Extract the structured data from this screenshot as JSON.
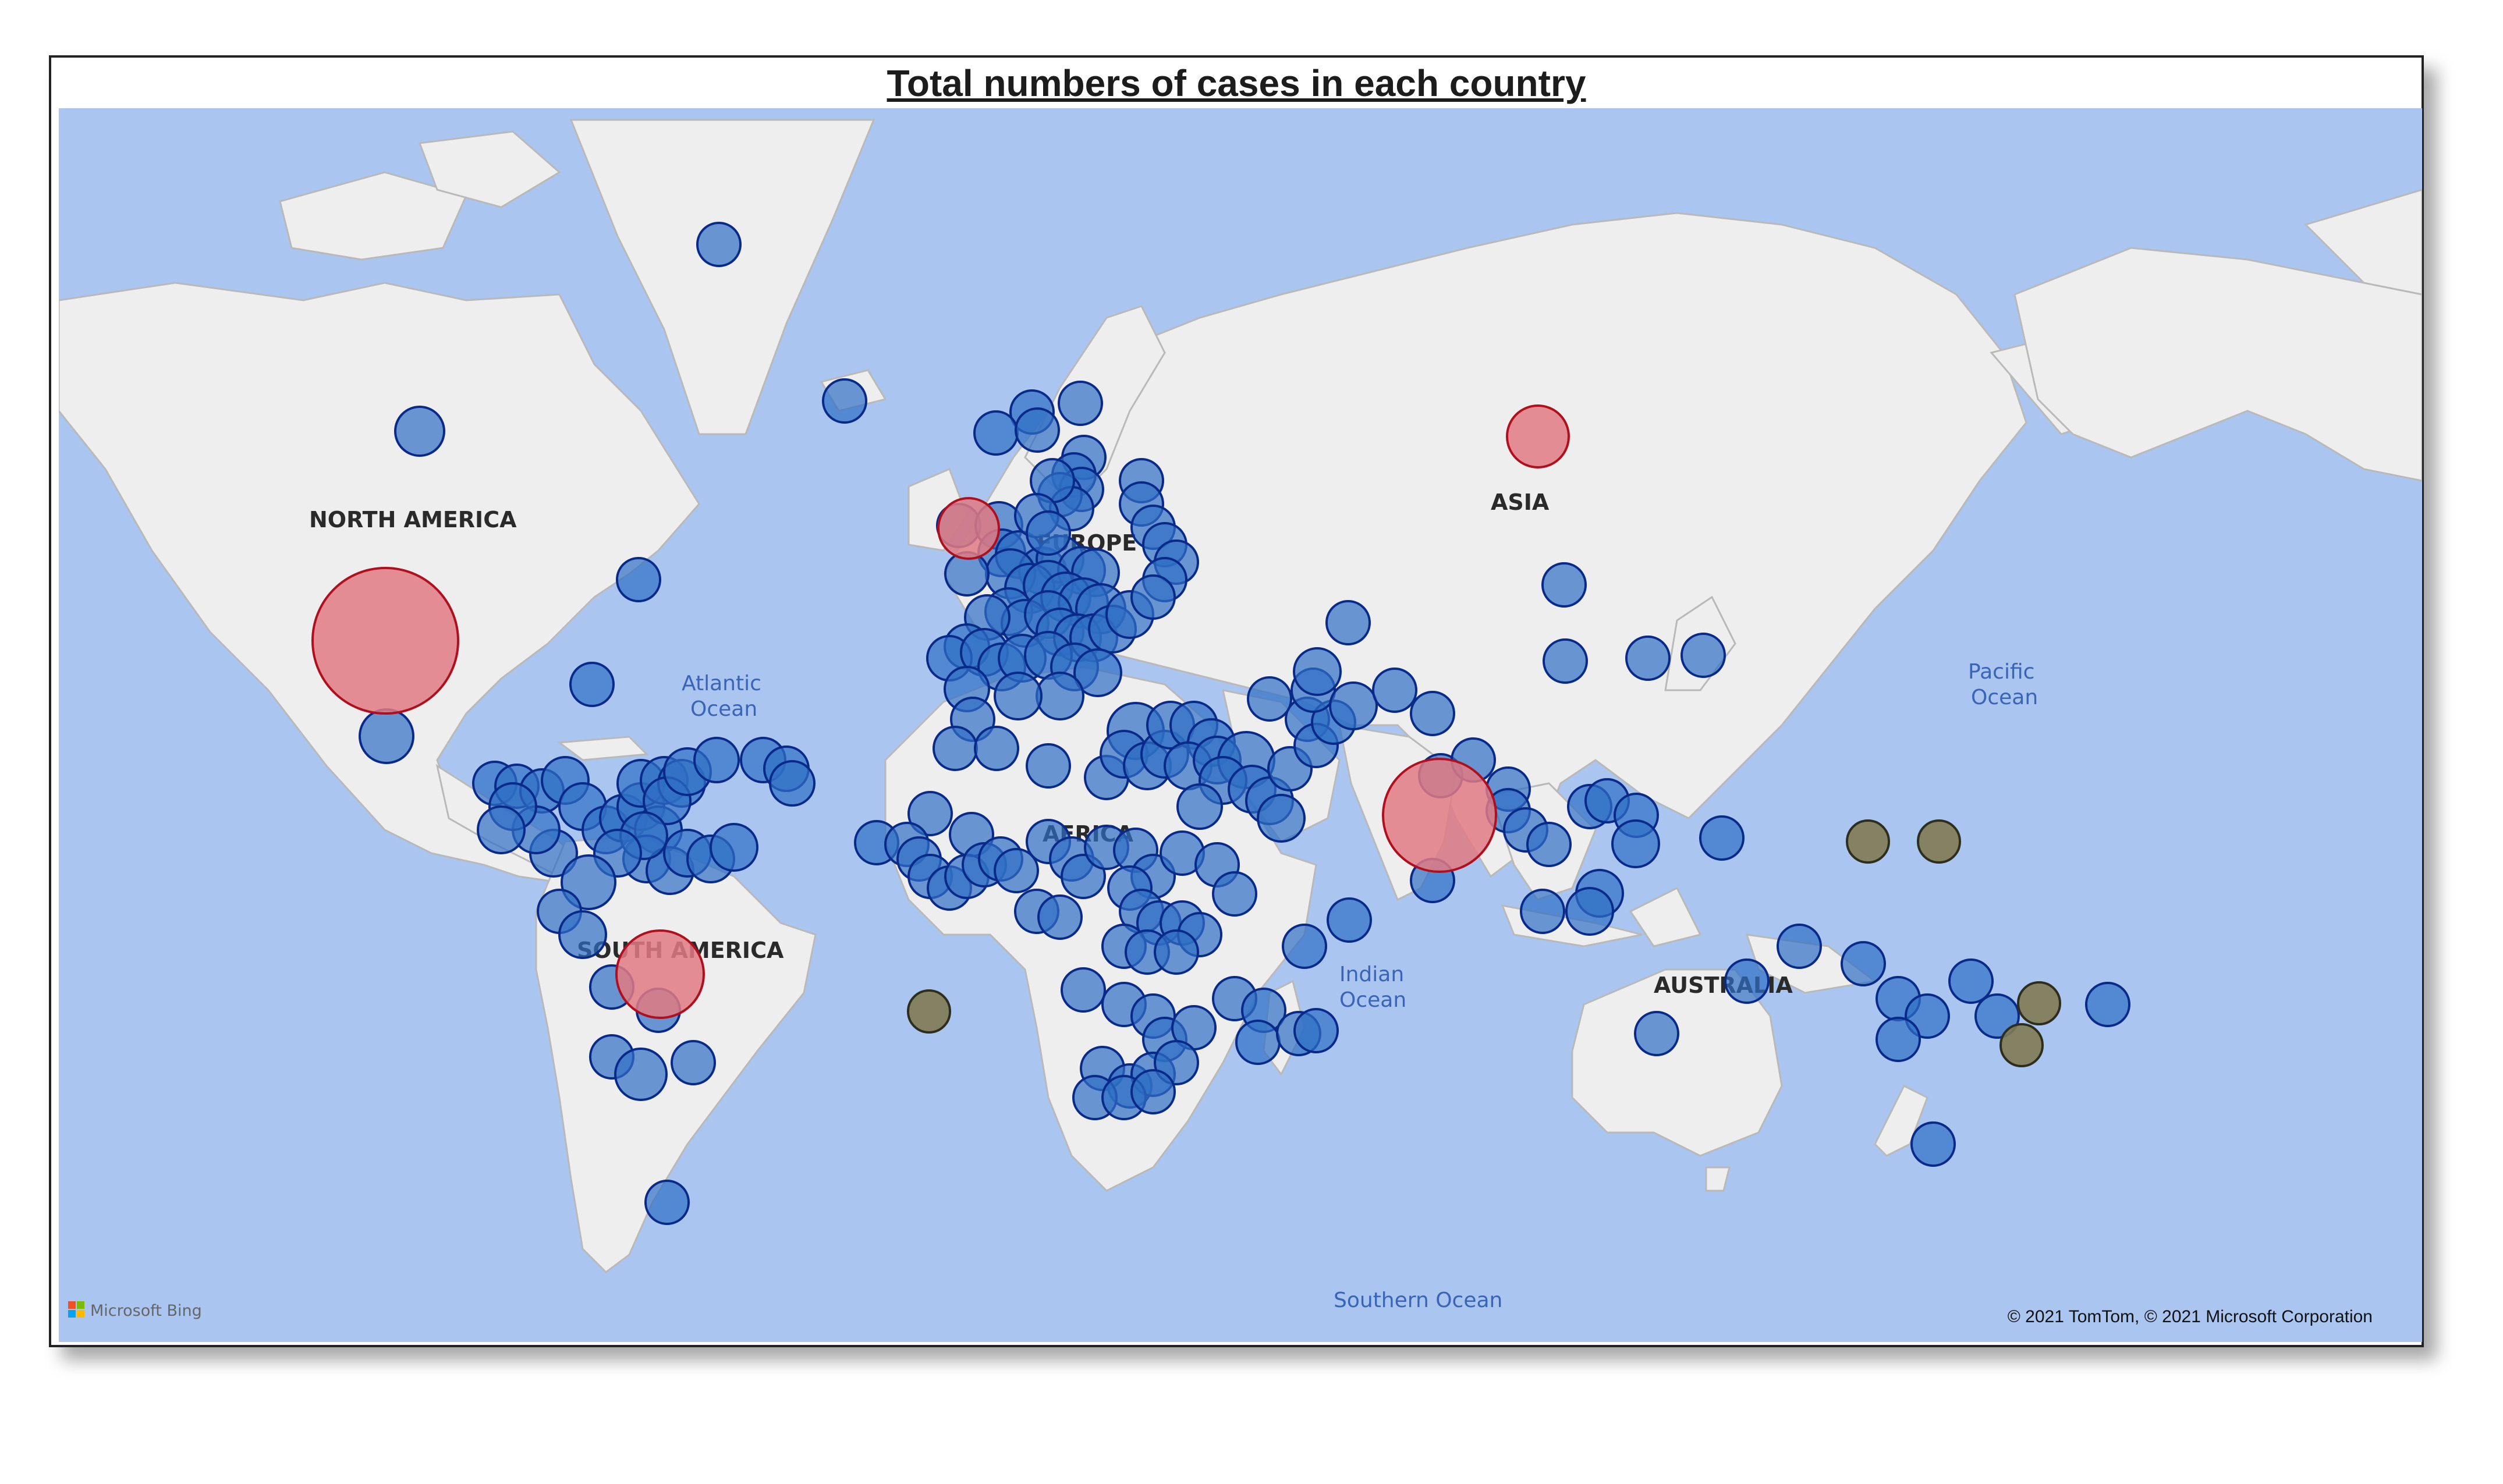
{
  "title": "Total numbers of cases in each country",
  "labels": {
    "continents": [
      "NORTH AMERICA",
      "SOUTH AMERICA",
      "EUROPE",
      "AFRICA",
      "ASIA",
      "AUSTRALIA"
    ],
    "oceans": [
      "Atlantic",
      "Ocean",
      "Pacific",
      "Ocean",
      "Indian",
      "Ocean",
      "Southern Ocean"
    ]
  },
  "attribution": "© 2021 TomTom, © 2021 Microsoft Corporation",
  "bing_logo": "Microsoft Bing",
  "colors": {
    "ocean": "#a9c5f0",
    "land": "#eeeeee",
    "bubble_blue": "#2f6fc4",
    "bubble_blue_stroke": "#0a2a8a",
    "bubble_red": "#e27a82",
    "bubble_red_stroke": "#b0101e",
    "bubble_olive": "#7f7a52",
    "bubble_olive_stroke": "#2e2e1e"
  },
  "legend": null
}
